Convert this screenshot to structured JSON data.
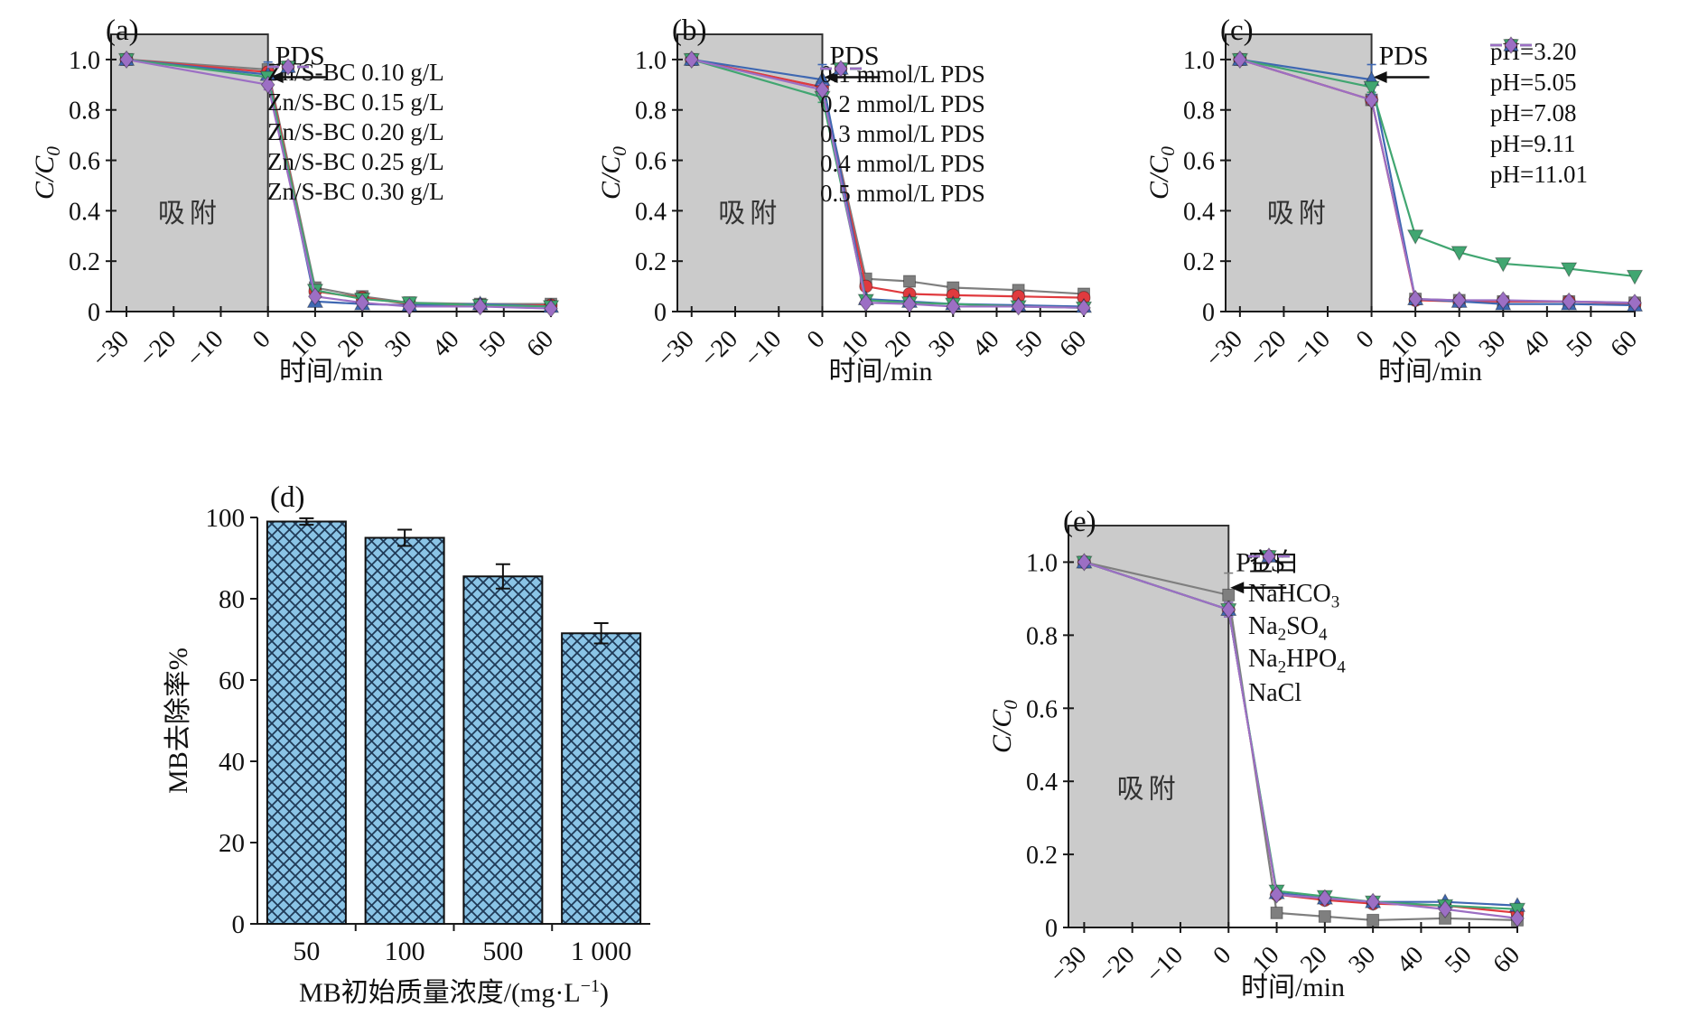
{
  "figure": {
    "background": "#ffffff",
    "axis_color": "#1a1a1a",
    "text_color": "#111111",
    "shade_fill": "#cbcbcb",
    "shade_edge": "#333333",
    "bar_fill": "#8ac4e6",
    "bar_hatch": "#1f3a57",
    "series_colors": {
      "gray": "#7f7f7f",
      "red": "#e03a3e",
      "blue": "#3f68b2",
      "green": "#41a671",
      "purple": "#9c6fc4"
    }
  },
  "chart_data": [
    {
      "id": "a",
      "type": "line",
      "panel_label": "(a)",
      "xlabel": "时间/min",
      "ylabel": "C/C",
      "ylabel_sub": "0",
      "x_tick_labels": [
        "−30",
        "−20",
        "−10",
        "0",
        "10",
        "20",
        "30",
        "40",
        "50",
        "60"
      ],
      "x_tick_values": [
        -30,
        -20,
        -10,
        0,
        10,
        20,
        30,
        40,
        50,
        60
      ],
      "y_tick_labels": [
        "0",
        "0.2",
        "0.4",
        "0.6",
        "0.8",
        "1.0"
      ],
      "y_tick_values": [
        0,
        0.2,
        0.4,
        0.6,
        0.8,
        1.0
      ],
      "ylim": [
        0,
        1.1
      ],
      "shade": {
        "x_from": -30,
        "x_to": 0,
        "label": "吸附"
      },
      "annotation_label": "PDS",
      "x": [
        -30,
        0,
        10,
        20,
        30,
        45,
        60
      ],
      "series": [
        {
          "name": "Zn/S-BC 0.10 g/L",
          "color": "gray",
          "marker": "square",
          "err0": 0.02,
          "y": [
            1.0,
            0.96,
            0.095,
            0.06,
            0.035,
            0.03,
            0.03
          ]
        },
        {
          "name": "Zn/S-BC 0.15 g/L",
          "color": "red",
          "marker": "circle",
          "err0": 0.02,
          "y": [
            1.0,
            0.95,
            0.08,
            0.055,
            0.03,
            0.025,
            0.025
          ]
        },
        {
          "name": "Zn/S-BC 0.20 g/L",
          "color": "blue",
          "marker": "triangle-up",
          "err0": 0.05,
          "y": [
            1.0,
            0.94,
            0.04,
            0.03,
            0.025,
            0.03,
            0.02
          ]
        },
        {
          "name": "Zn/S-BC 0.25 g/L",
          "color": "green",
          "marker": "triangle-down",
          "err0": 0.02,
          "y": [
            1.0,
            0.93,
            0.085,
            0.05,
            0.035,
            0.025,
            0.02
          ]
        },
        {
          "name": "Zn/S-BC 0.30 g/L",
          "color": "purple",
          "marker": "diamond",
          "err0": 0.02,
          "y": [
            1.0,
            0.9,
            0.06,
            0.035,
            0.02,
            0.02,
            0.012
          ]
        }
      ]
    },
    {
      "id": "b",
      "type": "line",
      "panel_label": "(b)",
      "xlabel": "时间/min",
      "ylabel": "C/C",
      "ylabel_sub": "0",
      "x_tick_labels": [
        "−30",
        "−20",
        "−10",
        "0",
        "10",
        "20",
        "30",
        "40",
        "50",
        "60"
      ],
      "x_tick_values": [
        -30,
        -20,
        -10,
        0,
        10,
        20,
        30,
        40,
        50,
        60
      ],
      "y_tick_labels": [
        "0",
        "0.2",
        "0.4",
        "0.6",
        "0.8",
        "1.0"
      ],
      "y_tick_values": [
        0,
        0.2,
        0.4,
        0.6,
        0.8,
        1.0
      ],
      "ylim": [
        0,
        1.1
      ],
      "shade": {
        "x_from": -30,
        "x_to": 0,
        "label": "吸附"
      },
      "annotation_label": "PDS",
      "x": [
        -30,
        0,
        10,
        20,
        30,
        45,
        60
      ],
      "series": [
        {
          "name": "0.1 mmol/L PDS",
          "color": "gray",
          "marker": "square",
          "err0": 0.02,
          "y": [
            1.0,
            0.89,
            0.13,
            0.12,
            0.095,
            0.085,
            0.07
          ]
        },
        {
          "name": "0.2 mmol/L PDS",
          "color": "red",
          "marker": "circle",
          "err0": 0.02,
          "y": [
            1.0,
            0.89,
            0.1,
            0.07,
            0.065,
            0.06,
            0.055
          ]
        },
        {
          "name": "0.3 mmol/L PDS",
          "color": "blue",
          "marker": "triangle-up",
          "err0": 0.06,
          "y": [
            1.0,
            0.92,
            0.05,
            0.04,
            0.03,
            0.025,
            0.02
          ]
        },
        {
          "name": "0.4 mmol/L PDS",
          "color": "green",
          "marker": "triangle-down",
          "err0": 0.02,
          "y": [
            1.0,
            0.85,
            0.045,
            0.035,
            0.03,
            0.02,
            0.015
          ]
        },
        {
          "name": "0.5 mmol/L PDS",
          "color": "purple",
          "marker": "diamond",
          "err0": 0.02,
          "y": [
            1.0,
            0.88,
            0.035,
            0.03,
            0.02,
            0.02,
            0.015
          ]
        }
      ]
    },
    {
      "id": "c",
      "type": "line",
      "panel_label": "(c)",
      "xlabel": "时间/min",
      "ylabel": "C/C",
      "ylabel_sub": "0",
      "x_tick_labels": [
        "−30",
        "−20",
        "−10",
        "0",
        "10",
        "20",
        "30",
        "40",
        "50",
        "60"
      ],
      "x_tick_values": [
        -30,
        -20,
        -10,
        0,
        10,
        20,
        30,
        40,
        50,
        60
      ],
      "y_tick_labels": [
        "0",
        "0.2",
        "0.4",
        "0.6",
        "0.8",
        "1.0"
      ],
      "y_tick_values": [
        0,
        0.2,
        0.4,
        0.6,
        0.8,
        1.0
      ],
      "ylim": [
        0,
        1.1
      ],
      "shade": {
        "x_from": -30,
        "x_to": 0,
        "label": "吸附"
      },
      "annotation_label": "PDS",
      "x": [
        -30,
        0,
        10,
        20,
        30,
        45,
        60
      ],
      "series": [
        {
          "name": "pH=3.20",
          "color": "gray",
          "marker": "square",
          "err0": 0.015,
          "y": [
            1.0,
            0.84,
            0.05,
            0.045,
            0.04,
            0.04,
            0.035
          ]
        },
        {
          "name": "pH=5.05",
          "color": "red",
          "marker": "circle",
          "err0": 0.015,
          "y": [
            1.0,
            0.84,
            0.045,
            0.04,
            0.04,
            0.04,
            0.03
          ]
        },
        {
          "name": "pH=7.08",
          "color": "blue",
          "marker": "triangle-up",
          "err0": 0.06,
          "y": [
            1.0,
            0.92,
            0.05,
            0.04,
            0.03,
            0.03,
            0.025
          ]
        },
        {
          "name": "pH=9.11",
          "color": "green",
          "marker": "triangle-down",
          "err0": 0.02,
          "y": [
            1.0,
            0.89,
            0.3,
            0.235,
            0.19,
            0.17,
            0.14
          ]
        },
        {
          "name": "pH=11.01",
          "color": "purple",
          "marker": "diamond",
          "err0": 0.015,
          "y": [
            1.0,
            0.84,
            0.05,
            0.045,
            0.045,
            0.04,
            0.035
          ]
        }
      ]
    },
    {
      "id": "d",
      "type": "bar",
      "panel_label": "(d)",
      "xlabel": "MB初始质量浓度/(mg·L⁻¹)",
      "ylabel": "MB去除率%",
      "categories": [
        "50",
        "100",
        "500",
        "1 000"
      ],
      "values": [
        99,
        95,
        85.5,
        71.5
      ],
      "errors": [
        0.8,
        2,
        3,
        2.5
      ],
      "y_tick_labels": [
        "0",
        "20",
        "40",
        "60",
        "80",
        "100"
      ],
      "y_tick_values": [
        0,
        20,
        40,
        60,
        80,
        100
      ],
      "ylim": [
        0,
        100
      ]
    },
    {
      "id": "e",
      "type": "line",
      "panel_label": "(e)",
      "xlabel": "时间/min",
      "ylabel": "C/C",
      "ylabel_sub": "0",
      "x_tick_labels": [
        "−30",
        "−20",
        "−10",
        "0",
        "10",
        "20",
        "30",
        "40",
        "50",
        "60"
      ],
      "x_tick_values": [
        -30,
        -20,
        -10,
        0,
        10,
        20,
        30,
        40,
        50,
        60
      ],
      "y_tick_labels": [
        "0",
        "0.2",
        "0.4",
        "0.6",
        "0.8",
        "1.0"
      ],
      "y_tick_values": [
        0,
        0.2,
        0.4,
        0.6,
        0.8,
        1.0
      ],
      "ylim": [
        0,
        1.1
      ],
      "shade": {
        "x_from": -30,
        "x_to": 0,
        "label": "吸附"
      },
      "annotation_label": "PDS",
      "x": [
        -30,
        0,
        10,
        20,
        30,
        45,
        60
      ],
      "series": [
        {
          "name": "空白",
          "color": "gray",
          "marker": "square",
          "err0": 0.06,
          "y": [
            1.0,
            0.91,
            0.04,
            0.03,
            0.02,
            0.025,
            0.02
          ]
        },
        {
          "name": "NaHCO₃",
          "color": "red",
          "marker": "circle",
          "err0": 0.02,
          "y": [
            1.0,
            0.87,
            0.09,
            0.075,
            0.065,
            0.06,
            0.04
          ]
        },
        {
          "name": "Na₂SO₄",
          "color": "blue",
          "marker": "triangle-up",
          "err0": 0.02,
          "y": [
            1.0,
            0.87,
            0.095,
            0.08,
            0.07,
            0.07,
            0.06
          ]
        },
        {
          "name": "Na₂HPO₄",
          "color": "green",
          "marker": "triangle-down",
          "err0": 0.02,
          "y": [
            1.0,
            0.87,
            0.1,
            0.085,
            0.07,
            0.06,
            0.05
          ]
        },
        {
          "name": "NaCl",
          "color": "purple",
          "marker": "diamond",
          "err0": 0.02,
          "y": [
            1.0,
            0.87,
            0.09,
            0.08,
            0.07,
            0.05,
            0.025
          ]
        }
      ]
    }
  ]
}
